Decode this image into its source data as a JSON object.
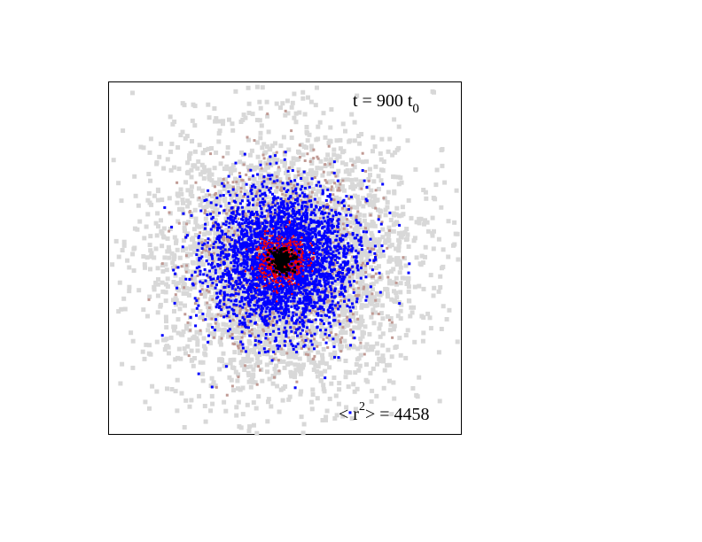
{
  "labels": {
    "time": {
      "text": "t = 900 t",
      "subscript": "0"
    },
    "msd": {
      "prefix": "< r",
      "superscript": "2",
      "suffix": "> = 4458"
    }
  }
}
